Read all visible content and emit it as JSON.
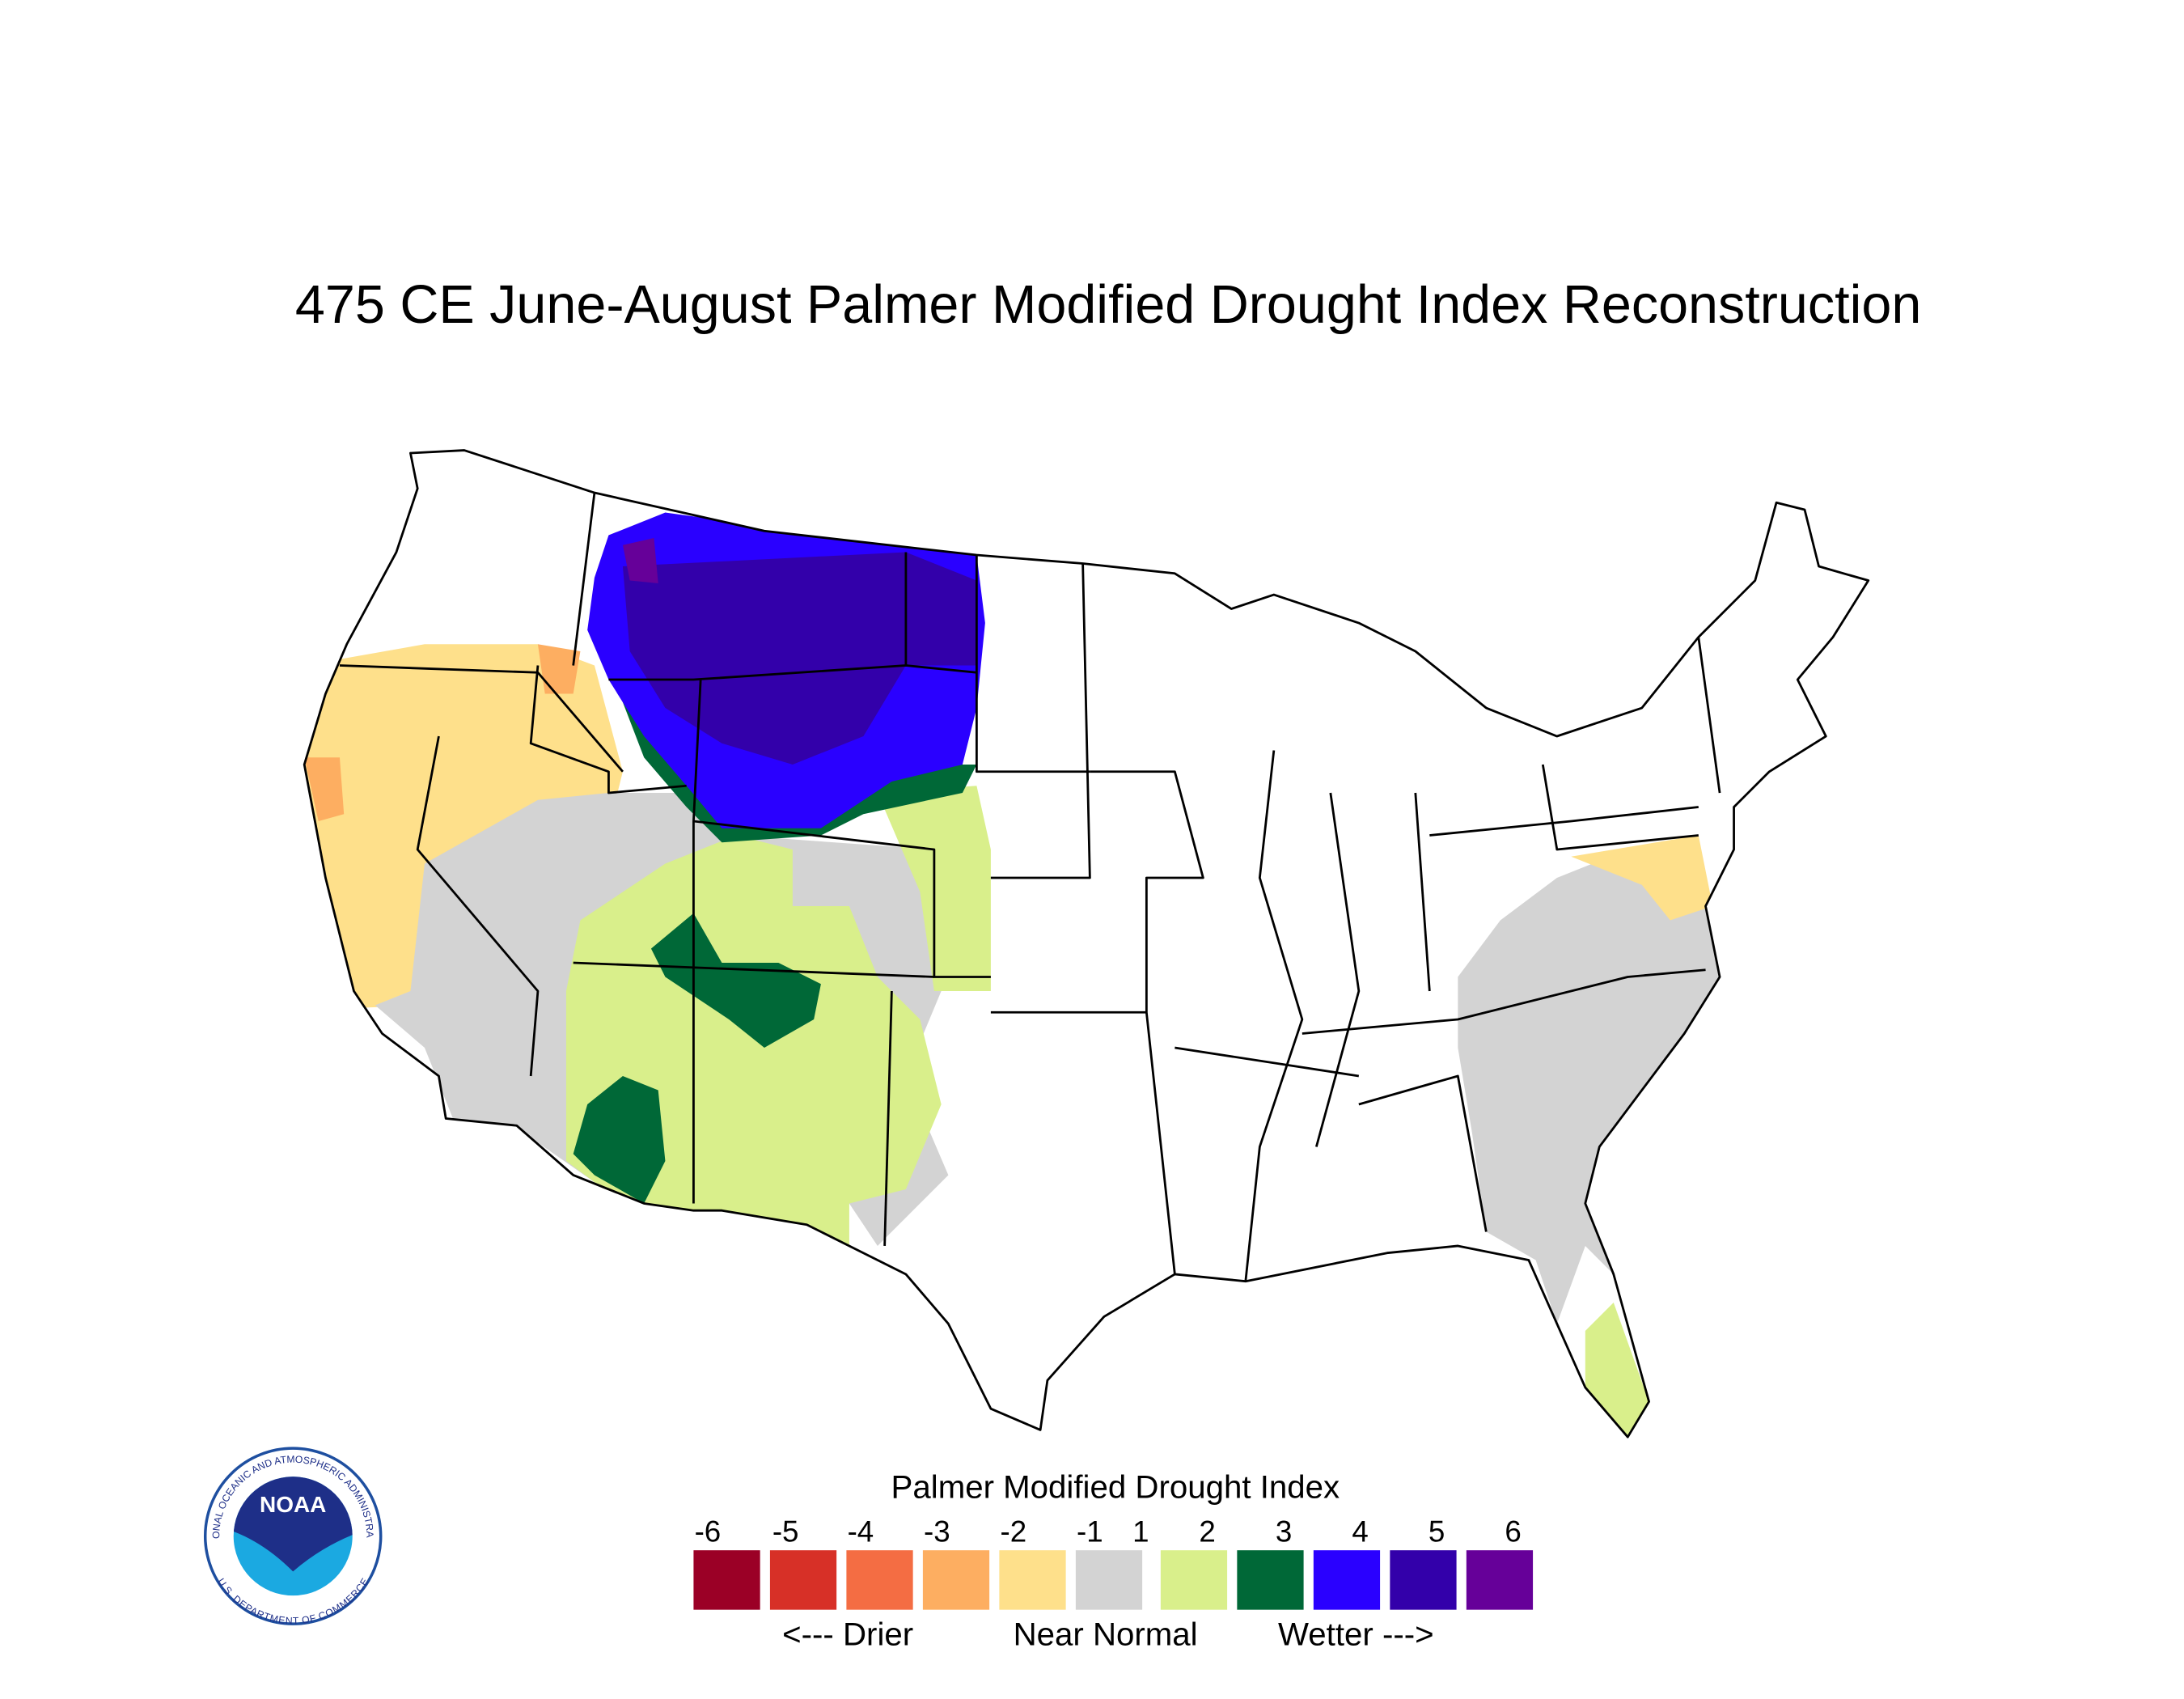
{
  "title": "475 CE  June-August  Palmer Modified Drought Index Reconstruction",
  "legend": {
    "title": "Palmer Modified Drought Index",
    "labels": [
      "-6",
      "-5",
      "-4",
      "-3",
      "-2",
      "-1",
      "1",
      "2",
      "3",
      "4",
      "5",
      "6"
    ],
    "colors": [
      "#9b0026",
      "#d73027",
      "#f46d43",
      "#fdae61",
      "#fee08b",
      "#d3d3d3",
      "#d9ef8b",
      "#006837",
      "#2a00ff",
      "#3300aa",
      "#660099"
    ],
    "annotations": [
      "<--- Drier",
      "Near Normal",
      "Wetter --->"
    ]
  },
  "logo": {
    "name": "NOAA",
    "top_ring": "NATIONAL OCEANIC AND ATMOSPHERIC ADMINISTRATION",
    "bottom_ring": "U.S. DEPARTMENT OF COMMERCE"
  }
}
